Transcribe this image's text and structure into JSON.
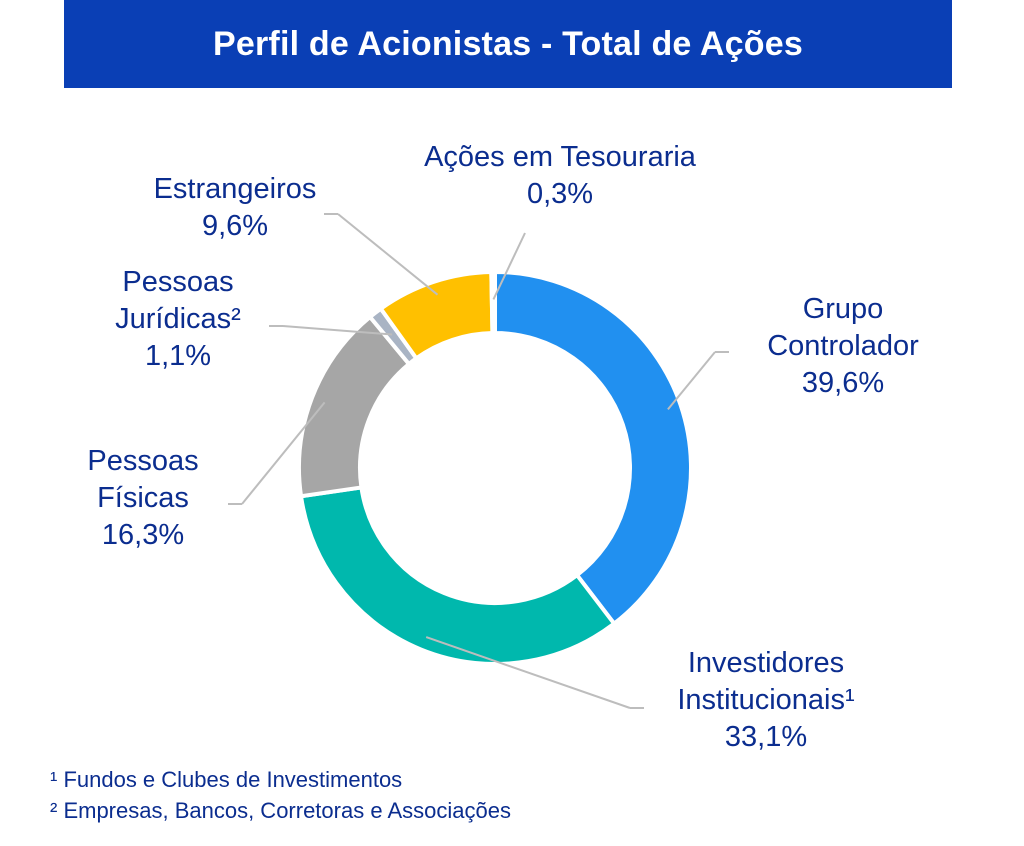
{
  "chart_data": {
    "type": "pie",
    "variant": "donut",
    "title": "Perfil de Acionistas - Total de Ações",
    "slices": [
      {
        "name": "Grupo Controlador",
        "lines": [
          "Grupo",
          "Controlador",
          "39,6%"
        ],
        "value": 39.6,
        "color": "#2190f0"
      },
      {
        "name": "Investidores Institucionais¹",
        "lines": [
          "Investidores",
          "Institucionais¹",
          "33,1%"
        ],
        "value": 33.1,
        "color": "#00b8ad"
      },
      {
        "name": "Pessoas Físicas",
        "lines": [
          "Pessoas",
          "Físicas",
          "16,3%"
        ],
        "value": 16.3,
        "color": "#a6a6a6"
      },
      {
        "name": "Pessoas Jurídicas²",
        "lines": [
          "Pessoas",
          "Jurídicas²",
          "1,1%"
        ],
        "value": 1.1,
        "color": "#a9b4c4"
      },
      {
        "name": "Estrangeiros",
        "lines": [
          "Estrangeiros",
          "9,6%"
        ],
        "value": 9.6,
        "color": "#ffc000"
      },
      {
        "name": "Ações em Tesouraria",
        "lines": [
          "Ações em Tesouraria",
          "0,3%"
        ],
        "value": 0.3,
        "color": "#4f72c4"
      }
    ]
  },
  "footnotes": [
    "¹ Fundos e Clubes de Investimentos",
    "² Empresas, Bancos, Corretoras e Associações"
  ],
  "colors": {
    "title_bar": "#0a3fb5",
    "label_text": "#0b2d8f",
    "leader_line": "#bdbdbd"
  }
}
